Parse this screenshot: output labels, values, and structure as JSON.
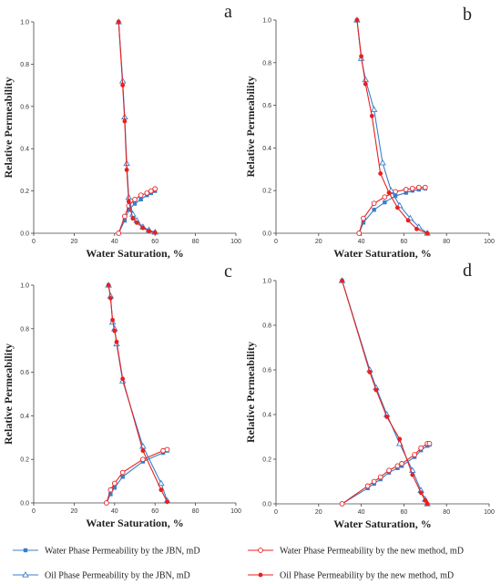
{
  "colors": {
    "jbn": "#3a7fc8",
    "new": "#e8201f"
  },
  "legend": [
    {
      "key": "water_jbn",
      "label": "Water Phase Permeability by the JBN, mD",
      "color": "#3a7fc8",
      "marker": "square"
    },
    {
      "key": "water_new",
      "label": "Water Phase Permeability by the new method, mD",
      "color": "#e8201f",
      "marker": "open-circle"
    },
    {
      "key": "oil_jbn",
      "label": "Oil Phase Permeability by the JBN, mD",
      "color": "#3a7fc8",
      "marker": "open-triangle"
    },
    {
      "key": "oil_new",
      "label": "Oil Phase Permeability by the new method, mD",
      "color": "#e8201f",
      "marker": "filled-circle"
    }
  ],
  "chart_data": [
    {
      "panel": "a",
      "type": "line",
      "xlabel": "Water Saturation, %",
      "ylabel": "Relative Permeability",
      "xlim": [
        0,
        100
      ],
      "ylim": [
        0,
        1.0
      ],
      "xticks": [
        0,
        20,
        40,
        60,
        80,
        100
      ],
      "yticks": [
        0.0,
        0.2,
        0.4,
        0.6,
        0.8,
        1.0
      ],
      "series": [
        {
          "key": "water_jbn",
          "x": [
            42,
            45,
            47,
            50,
            53,
            56,
            58,
            60
          ],
          "y": [
            0,
            0.06,
            0.11,
            0.14,
            0.16,
            0.18,
            0.19,
            0.2
          ]
        },
        {
          "key": "water_new",
          "x": [
            42,
            45,
            47,
            50,
            53,
            56,
            58,
            60
          ],
          "y": [
            0,
            0.08,
            0.13,
            0.16,
            0.18,
            0.19,
            0.2,
            0.21
          ]
        },
        {
          "key": "oil_jbn",
          "x": [
            42,
            44,
            45,
            46,
            47,
            49,
            51,
            54,
            57,
            60
          ],
          "y": [
            1.0,
            0.72,
            0.55,
            0.33,
            0.17,
            0.09,
            0.06,
            0.03,
            0.015,
            0.005
          ]
        },
        {
          "key": "oil_new",
          "x": [
            42,
            44,
            45,
            46,
            47,
            49,
            51,
            54,
            57,
            60
          ],
          "y": [
            1.0,
            0.7,
            0.53,
            0.3,
            0.15,
            0.07,
            0.05,
            0.025,
            0.01,
            0.003
          ]
        }
      ]
    },
    {
      "panel": "b",
      "type": "line",
      "xlabel": "Water Saturation, %",
      "ylabel": "Relative Permeability",
      "xlim": [
        0,
        100
      ],
      "ylim": [
        0,
        1.0
      ],
      "xticks": [
        0,
        20,
        40,
        60,
        80,
        100
      ],
      "yticks": [
        0.0,
        0.2,
        0.4,
        0.6,
        0.8,
        1.0
      ],
      "series": [
        {
          "key": "water_jbn",
          "x": [
            39,
            41,
            46,
            51,
            56,
            61,
            64,
            67,
            70
          ],
          "y": [
            0,
            0.05,
            0.11,
            0.145,
            0.175,
            0.19,
            0.2,
            0.205,
            0.21
          ]
        },
        {
          "key": "water_new",
          "x": [
            39,
            41,
            46,
            51,
            56,
            61,
            64,
            67,
            70
          ],
          "y": [
            0,
            0.07,
            0.14,
            0.17,
            0.195,
            0.205,
            0.21,
            0.215,
            0.215
          ]
        },
        {
          "key": "oil_jbn",
          "x": [
            38,
            40,
            42,
            46,
            50,
            54,
            58,
            63,
            67,
            71
          ],
          "y": [
            1.0,
            0.82,
            0.72,
            0.58,
            0.33,
            0.2,
            0.13,
            0.07,
            0.03,
            0.0
          ]
        },
        {
          "key": "oil_new",
          "x": [
            38,
            40,
            42,
            45,
            49,
            53,
            57,
            62,
            66,
            71
          ],
          "y": [
            1.0,
            0.83,
            0.7,
            0.55,
            0.28,
            0.19,
            0.12,
            0.06,
            0.02,
            0.0
          ]
        }
      ]
    },
    {
      "panel": "c",
      "type": "line",
      "xlabel": "Water Saturation, %",
      "ylabel": "Relative Permeability",
      "xlim": [
        0,
        100
      ],
      "ylim": [
        0,
        1.0
      ],
      "xticks": [
        0,
        20,
        40,
        60,
        80,
        100
      ],
      "yticks": [
        0.0,
        0.2,
        0.4,
        0.6,
        0.8,
        1.0
      ],
      "series": [
        {
          "key": "water_jbn",
          "x": [
            36,
            38,
            40,
            44,
            54,
            64,
            66
          ],
          "y": [
            0,
            0.04,
            0.07,
            0.12,
            0.19,
            0.23,
            0.24
          ]
        },
        {
          "key": "water_new",
          "x": [
            36,
            38,
            40,
            44,
            54,
            64,
            66
          ],
          "y": [
            0,
            0.06,
            0.09,
            0.14,
            0.2,
            0.24,
            0.245
          ]
        },
        {
          "key": "oil_jbn",
          "x": [
            37,
            38,
            39,
            40,
            41,
            44,
            54,
            63,
            66
          ],
          "y": [
            1.0,
            0.95,
            0.83,
            0.8,
            0.73,
            0.56,
            0.26,
            0.09,
            0.01
          ]
        },
        {
          "key": "oil_new",
          "x": [
            37,
            38,
            39,
            40,
            41,
            44,
            54,
            63,
            66
          ],
          "y": [
            1.0,
            0.94,
            0.84,
            0.79,
            0.74,
            0.57,
            0.24,
            0.06,
            0.005
          ]
        }
      ]
    },
    {
      "panel": "d",
      "type": "line",
      "xlabel": "Water Saturation, %",
      "ylabel": "Relative Permeability",
      "xlim": [
        0,
        100
      ],
      "ylim": [
        0,
        1.0
      ],
      "xticks": [
        0,
        20,
        40,
        60,
        80,
        100
      ],
      "yticks": [
        0.0,
        0.2,
        0.4,
        0.6,
        0.8,
        1.0
      ],
      "series": [
        {
          "key": "water_jbn",
          "x": [
            31,
            43,
            46,
            49,
            53,
            57,
            59,
            65,
            68,
            71,
            72
          ],
          "y": [
            0,
            0.07,
            0.09,
            0.11,
            0.14,
            0.16,
            0.17,
            0.21,
            0.24,
            0.26,
            0.265
          ]
        },
        {
          "key": "water_new",
          "x": [
            31,
            43,
            46,
            49,
            53,
            57,
            59,
            65,
            68,
            71,
            72
          ],
          "y": [
            0,
            0.08,
            0.1,
            0.12,
            0.15,
            0.17,
            0.18,
            0.22,
            0.25,
            0.27,
            0.27
          ]
        },
        {
          "key": "oil_jbn",
          "x": [
            31,
            44,
            47,
            52,
            58,
            64,
            68,
            70,
            71
          ],
          "y": [
            1.0,
            0.6,
            0.52,
            0.4,
            0.27,
            0.15,
            0.06,
            0.02,
            0.0
          ]
        },
        {
          "key": "oil_new",
          "x": [
            31,
            44,
            47,
            52,
            58,
            64,
            68,
            70,
            71
          ],
          "y": [
            1.0,
            0.59,
            0.51,
            0.39,
            0.29,
            0.13,
            0.05,
            0.015,
            0.0
          ]
        }
      ]
    }
  ]
}
